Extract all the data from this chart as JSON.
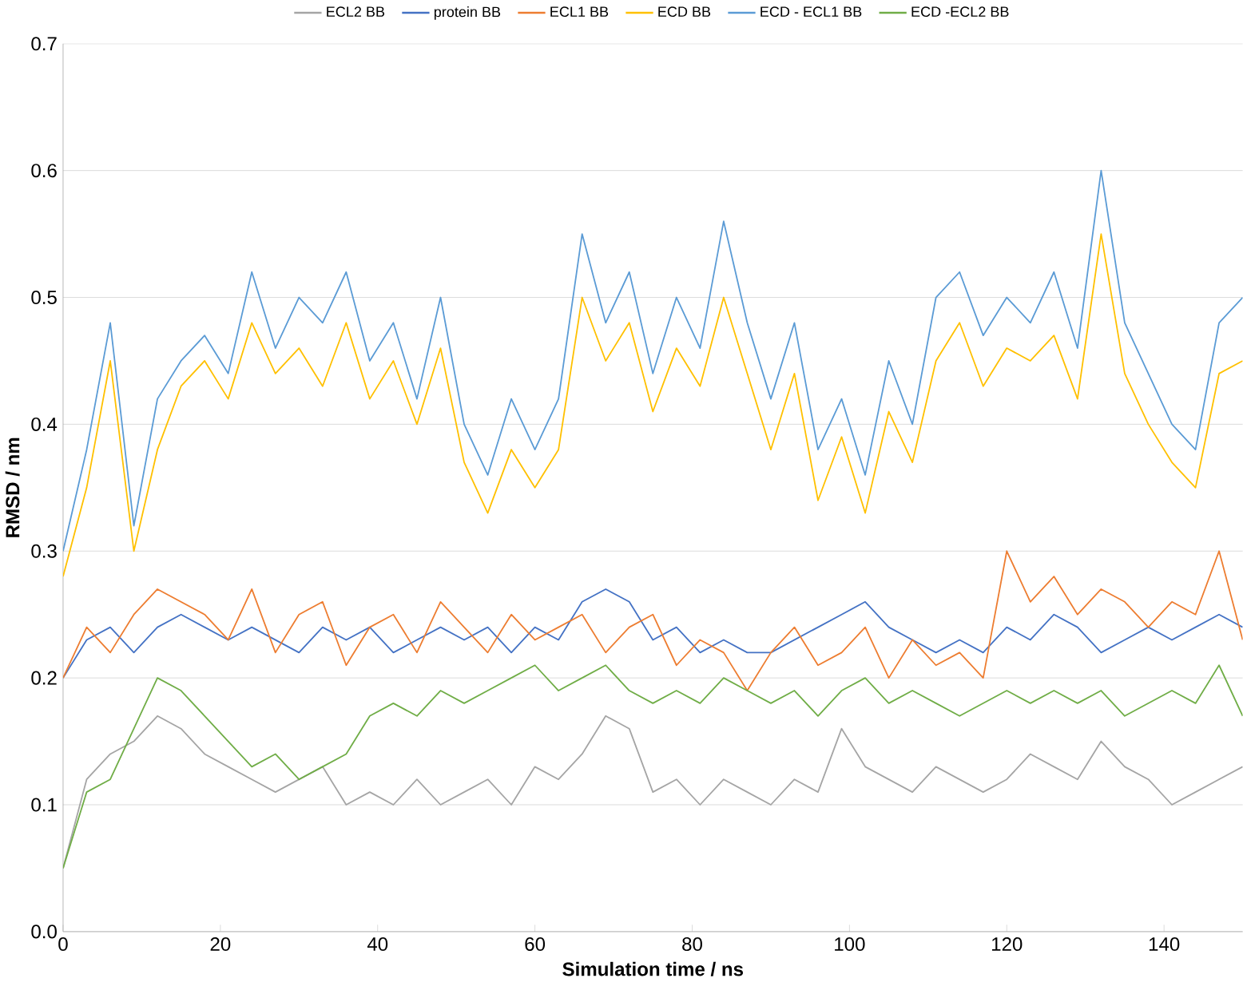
{
  "chart_data": {
    "type": "line",
    "xlabel": "Simulation time / ns",
    "ylabel": "RMSD / nm",
    "x": [
      0,
      3,
      6,
      9,
      12,
      15,
      18,
      21,
      24,
      27,
      30,
      33,
      36,
      39,
      42,
      45,
      48,
      51,
      54,
      57,
      60,
      63,
      66,
      69,
      72,
      75,
      78,
      81,
      84,
      87,
      90,
      93,
      96,
      99,
      102,
      105,
      108,
      111,
      114,
      117,
      120,
      123,
      126,
      129,
      132,
      135,
      138,
      141,
      144,
      147,
      150
    ],
    "xlim": [
      0,
      150
    ],
    "xticks": [
      0,
      20,
      40,
      60,
      80,
      100,
      120,
      140
    ],
    "ylim": [
      0,
      0.7
    ],
    "yticks": [
      {
        "value": 0,
        "label": "0.0"
      },
      {
        "value": 0.1,
        "label": "0.1"
      },
      {
        "value": 0.2,
        "label": "0.2"
      },
      {
        "value": 0.3,
        "label": "0.3"
      },
      {
        "value": 0.4,
        "label": "0.4"
      },
      {
        "value": 0.5,
        "label": "0.5"
      },
      {
        "value": 0.6,
        "label": "0.6"
      },
      {
        "value": 0.7,
        "label": "0.7"
      }
    ],
    "grid": "y",
    "legend": "top",
    "marker": "none",
    "line_style": "solid",
    "series": [
      {
        "name": "ECL2 BB",
        "color": "#a5a5a5",
        "values": [
          0.05,
          0.12,
          0.14,
          0.15,
          0.17,
          0.16,
          0.14,
          0.13,
          0.12,
          0.11,
          0.12,
          0.13,
          0.1,
          0.11,
          0.1,
          0.12,
          0.1,
          0.11,
          0.12,
          0.1,
          0.13,
          0.12,
          0.14,
          0.17,
          0.16,
          0.11,
          0.12,
          0.1,
          0.12,
          0.11,
          0.1,
          0.12,
          0.11,
          0.16,
          0.13,
          0.12,
          0.11,
          0.13,
          0.12,
          0.11,
          0.12,
          0.14,
          0.13,
          0.12,
          0.15,
          0.13,
          0.12,
          0.1,
          0.11,
          0.12,
          0.13
        ]
      },
      {
        "name": "protein BB",
        "color": "#4472c4",
        "values": [
          0.2,
          0.23,
          0.24,
          0.22,
          0.24,
          0.25,
          0.24,
          0.23,
          0.24,
          0.23,
          0.22,
          0.24,
          0.23,
          0.24,
          0.22,
          0.23,
          0.24,
          0.23,
          0.24,
          0.22,
          0.24,
          0.23,
          0.26,
          0.27,
          0.26,
          0.23,
          0.24,
          0.22,
          0.23,
          0.22,
          0.22,
          0.23,
          0.24,
          0.25,
          0.26,
          0.24,
          0.23,
          0.22,
          0.23,
          0.22,
          0.24,
          0.23,
          0.25,
          0.24,
          0.22,
          0.23,
          0.24,
          0.23,
          0.24,
          0.25,
          0.24
        ]
      },
      {
        "name": "ECL1 BB",
        "color": "#ed7d31",
        "values": [
          0.2,
          0.24,
          0.22,
          0.25,
          0.27,
          0.26,
          0.25,
          0.23,
          0.27,
          0.22,
          0.25,
          0.26,
          0.21,
          0.24,
          0.25,
          0.22,
          0.26,
          0.24,
          0.22,
          0.25,
          0.23,
          0.24,
          0.25,
          0.22,
          0.24,
          0.25,
          0.21,
          0.23,
          0.22,
          0.19,
          0.22,
          0.24,
          0.21,
          0.22,
          0.24,
          0.2,
          0.23,
          0.21,
          0.22,
          0.2,
          0.3,
          0.26,
          0.28,
          0.25,
          0.27,
          0.26,
          0.24,
          0.26,
          0.25,
          0.3,
          0.23
        ]
      },
      {
        "name": "ECD BB",
        "color": "#ffc000",
        "values": [
          0.28,
          0.35,
          0.45,
          0.3,
          0.38,
          0.43,
          0.45,
          0.42,
          0.48,
          0.44,
          0.46,
          0.43,
          0.48,
          0.42,
          0.45,
          0.4,
          0.46,
          0.37,
          0.33,
          0.38,
          0.35,
          0.38,
          0.5,
          0.45,
          0.48,
          0.41,
          0.46,
          0.43,
          0.5,
          0.44,
          0.38,
          0.44,
          0.34,
          0.39,
          0.33,
          0.41,
          0.37,
          0.45,
          0.48,
          0.43,
          0.46,
          0.45,
          0.47,
          0.42,
          0.55,
          0.44,
          0.4,
          0.37,
          0.35,
          0.44,
          0.45
        ]
      },
      {
        "name": "ECD - ECL1 BB",
        "color": "#5b9bd5",
        "values": [
          0.3,
          0.38,
          0.48,
          0.32,
          0.42,
          0.45,
          0.47,
          0.44,
          0.52,
          0.46,
          0.5,
          0.48,
          0.52,
          0.45,
          0.48,
          0.42,
          0.5,
          0.4,
          0.36,
          0.42,
          0.38,
          0.42,
          0.55,
          0.48,
          0.52,
          0.44,
          0.5,
          0.46,
          0.56,
          0.48,
          0.42,
          0.48,
          0.38,
          0.42,
          0.36,
          0.45,
          0.4,
          0.5,
          0.52,
          0.47,
          0.5,
          0.48,
          0.52,
          0.46,
          0.6,
          0.48,
          0.44,
          0.4,
          0.38,
          0.48,
          0.5
        ]
      },
      {
        "name": "ECD -ECL2 BB",
        "color": "#70ad47",
        "values": [
          0.05,
          0.11,
          0.12,
          0.16,
          0.2,
          0.19,
          0.17,
          0.15,
          0.13,
          0.14,
          0.12,
          0.13,
          0.14,
          0.17,
          0.18,
          0.17,
          0.19,
          0.18,
          0.19,
          0.2,
          0.21,
          0.19,
          0.2,
          0.21,
          0.19,
          0.18,
          0.19,
          0.18,
          0.2,
          0.19,
          0.18,
          0.19,
          0.17,
          0.19,
          0.2,
          0.18,
          0.19,
          0.18,
          0.17,
          0.18,
          0.19,
          0.18,
          0.19,
          0.18,
          0.19,
          0.17,
          0.18,
          0.19,
          0.18,
          0.21,
          0.17
        ]
      }
    ]
  }
}
